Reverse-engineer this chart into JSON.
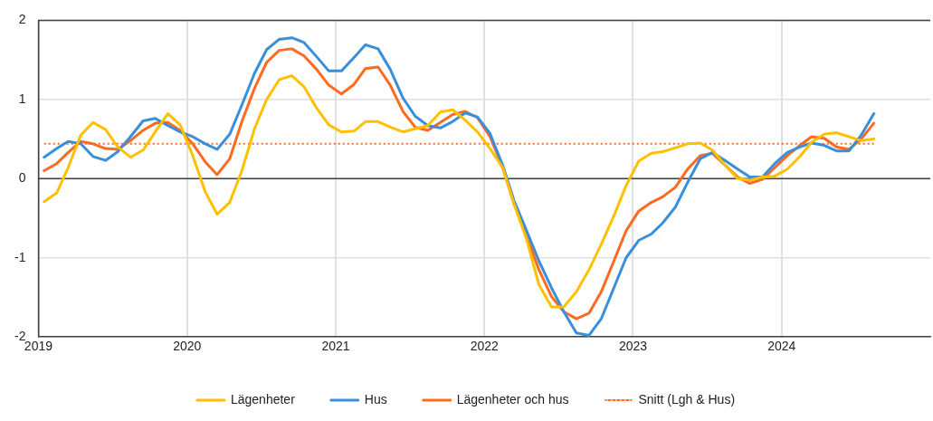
{
  "chart_data": {
    "type": "line",
    "x": [
      "2019-01-15",
      "2019-02-15",
      "2019-03-15",
      "2019-04-15",
      "2019-05-15",
      "2019-06-15",
      "2019-07-15",
      "2019-08-15",
      "2019-09-15",
      "2019-10-15",
      "2019-11-15",
      "2019-12-15",
      "2020-01-15",
      "2020-02-15",
      "2020-03-15",
      "2020-04-15",
      "2020-05-15",
      "2020-06-15",
      "2020-07-15",
      "2020-08-15",
      "2020-09-15",
      "2020-10-15",
      "2020-11-15",
      "2020-12-15",
      "2021-01-15",
      "2021-02-15",
      "2021-03-15",
      "2021-04-15",
      "2021-05-15",
      "2021-06-15",
      "2021-07-15",
      "2021-08-15",
      "2021-09-15",
      "2021-10-15",
      "2021-11-15",
      "2021-12-15",
      "2022-01-15",
      "2022-02-15",
      "2022-03-15",
      "2022-04-15",
      "2022-05-15",
      "2022-06-15",
      "2022-07-15",
      "2022-08-15",
      "2022-09-15",
      "2022-10-15",
      "2022-11-15",
      "2022-12-15",
      "2023-01-15",
      "2023-02-15",
      "2023-03-15",
      "2023-04-15",
      "2023-05-15",
      "2023-06-15",
      "2023-07-15",
      "2023-08-15",
      "2023-09-15",
      "2023-10-15",
      "2023-11-15",
      "2023-12-15",
      "2024-01-15",
      "2024-02-15",
      "2024-03-15",
      "2024-04-15",
      "2024-05-15",
      "2024-06-15",
      "2024-07-15",
      "2024-08-15"
    ],
    "series": [
      {
        "name": "Lägenheter",
        "color": "#ffc000",
        "values": [
          -0.29,
          -0.18,
          0.14,
          0.55,
          0.71,
          0.62,
          0.4,
          0.27,
          0.36,
          0.59,
          0.82,
          0.68,
          0.29,
          -0.17,
          -0.45,
          -0.3,
          0.1,
          0.63,
          1.0,
          1.25,
          1.3,
          1.16,
          0.89,
          0.68,
          0.59,
          0.6,
          0.72,
          0.72,
          0.65,
          0.59,
          0.63,
          0.67,
          0.84,
          0.87,
          0.74,
          0.59,
          0.38,
          0.14,
          -0.32,
          -0.77,
          -1.34,
          -1.62,
          -1.62,
          -1.43,
          -1.15,
          -0.83,
          -0.47,
          -0.09,
          0.22,
          0.32,
          0.34,
          0.39,
          0.44,
          0.45,
          0.36,
          0.17,
          0.0,
          -0.02,
          0.02,
          0.03,
          0.12,
          0.28,
          0.46,
          0.56,
          0.58,
          0.53,
          0.48,
          0.5
        ]
      },
      {
        "name": "Hus",
        "color": "#3a8fdb",
        "values": [
          0.27,
          0.38,
          0.47,
          0.44,
          0.28,
          0.23,
          0.34,
          0.53,
          0.73,
          0.76,
          0.67,
          0.59,
          0.53,
          0.44,
          0.37,
          0.56,
          0.93,
          1.33,
          1.63,
          1.76,
          1.78,
          1.72,
          1.54,
          1.36,
          1.36,
          1.53,
          1.69,
          1.64,
          1.38,
          1.02,
          0.79,
          0.67,
          0.64,
          0.72,
          0.83,
          0.78,
          0.57,
          0.17,
          -0.28,
          -0.66,
          -1.04,
          -1.38,
          -1.68,
          -1.95,
          -1.98,
          -1.77,
          -1.38,
          -1.0,
          -0.78,
          -0.7,
          -0.56,
          -0.36,
          -0.05,
          0.25,
          0.33,
          0.23,
          0.12,
          0.02,
          0.02,
          0.19,
          0.33,
          0.4,
          0.45,
          0.42,
          0.35,
          0.35,
          0.55,
          0.82
        ]
      },
      {
        "name": "Lägenheter och hus",
        "color": "#ff6a21",
        "values": [
          0.1,
          0.19,
          0.33,
          0.47,
          0.44,
          0.38,
          0.37,
          0.48,
          0.61,
          0.7,
          0.71,
          0.61,
          0.44,
          0.21,
          0.05,
          0.25,
          0.72,
          1.14,
          1.47,
          1.62,
          1.64,
          1.55,
          1.38,
          1.18,
          1.07,
          1.19,
          1.39,
          1.41,
          1.18,
          0.85,
          0.65,
          0.61,
          0.71,
          0.81,
          0.85,
          0.77,
          0.53,
          0.14,
          -0.32,
          -0.73,
          -1.15,
          -1.49,
          -1.68,
          -1.77,
          -1.7,
          -1.43,
          -1.04,
          -0.66,
          -0.41,
          -0.3,
          -0.23,
          -0.11,
          0.12,
          0.29,
          0.32,
          0.17,
          0.02,
          -0.06,
          -0.01,
          0.14,
          0.29,
          0.42,
          0.53,
          0.51,
          0.4,
          0.37,
          0.5,
          0.7
        ]
      },
      {
        "name": "Snitt (Lgh & Hus)",
        "color": "#ff6a21",
        "line_style": "dotted",
        "x": [
          "2019-01-15",
          "2024-08-15"
        ],
        "values": [
          0.44,
          0.44
        ]
      }
    ],
    "xlim": [
      "2019",
      "2025"
    ],
    "xticks": [
      "2019",
      "2020",
      "2021",
      "2022",
      "2023",
      "2024"
    ],
    "ylim": [
      -2,
      2
    ],
    "yticks": [
      -2,
      -1,
      0,
      1,
      2
    ],
    "ref_lines": [
      {
        "axis": "y",
        "value": 0,
        "color": "#404040",
        "line_style": "solid"
      }
    ],
    "grid": true,
    "legend": "bottom",
    "marker": "none",
    "line_style": "solid"
  }
}
